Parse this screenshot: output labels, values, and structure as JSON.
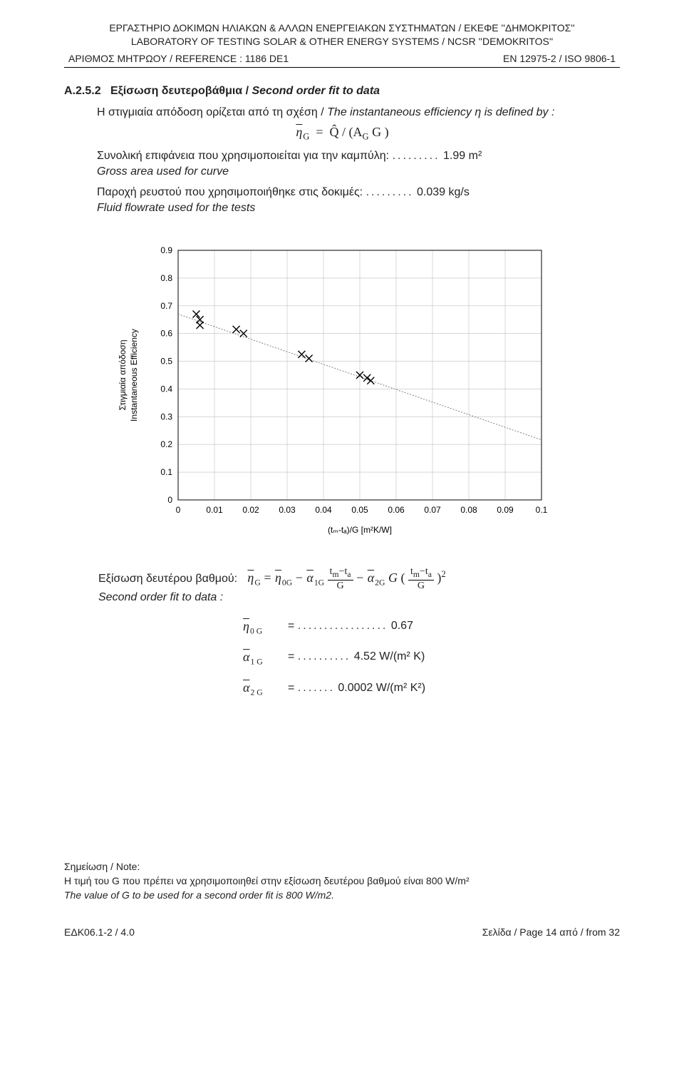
{
  "header": {
    "line1_el": "ΕΡΓΑΣΤΗΡΙΟ ΔΟΚΙΜΩΝ ΗΛΙΑΚΩΝ & ΑΛΛΩΝ ΕΝΕΡΓΕΙΑΚΩΝ ΣΥΣΤΗΜΑΤΩΝ / ΕΚΕΦΕ ''ΔΗΜΟΚΡΙΤΟΣ''",
    "line1_en": "LABORATORY OF TESTING SOLAR & OTHER ENERGY SYSTEMS / NCSR ''DEMOKRITOS''",
    "ref_left": "ΑΡΙΘΜΟΣ ΜΗΤΡΩΟΥ / REFERENCE : 1186 DE1",
    "ref_right": "EN 12975-2 / ISO 9806-1"
  },
  "section": {
    "number": "A.2.5.2",
    "title_el": "Εξίσωση δευτεροβάθμια /",
    "title_en": "Second order fit to data",
    "defn_el": "Η στιγμιαία απόδοση ορίζεται από τη σχέση /",
    "defn_en": "The instantaneous efficiency η is defined by :",
    "eq_main": "η̄_G = Q̂ / (A_G G)",
    "area_el": "Συνολική επιφάνεια που χρησιμοποιείται για την καμπύλη:",
    "area_val": "1.99 m²",
    "area_en": "Gross area used for curve",
    "flow_el": "Παροχή ρευστού που χρησιμοποιήθηκε στις δοκιμές:",
    "flow_val": "0.039 kg/s",
    "flow_en": "Fluid  flowrate  used for the tests"
  },
  "chart": {
    "type": "scatter_with_fit",
    "y_label": "Στιγμιαία απόδοση\nInstantaneous Efficiency",
    "x_label": "(tₘ-tₐ)/G   [m²K/W]",
    "xlim": [
      0,
      0.1
    ],
    "ylim": [
      0,
      0.9
    ],
    "x_ticks": [
      0,
      0.01,
      0.02,
      0.03,
      0.04,
      0.05,
      0.06,
      0.07,
      0.08,
      0.09,
      0.1
    ],
    "y_ticks": [
      0,
      0.1,
      0.2,
      0.3,
      0.4,
      0.5,
      0.6,
      0.7,
      0.8,
      0.9
    ],
    "grid_color": "#bfbfbf",
    "axis_color": "#000000",
    "background": "#ffffff",
    "marker_style": "x",
    "marker_color": "#000000",
    "marker_size": 10,
    "fit_line_color": "#808080",
    "fit_line_width": 1,
    "fit_line_dash": "2,2",
    "label_fontsize": 12,
    "tick_fontsize": 12,
    "points": [
      [
        0.005,
        0.67
      ],
      [
        0.006,
        0.65
      ],
      [
        0.006,
        0.63
      ],
      [
        0.016,
        0.615
      ],
      [
        0.018,
        0.6
      ],
      [
        0.034,
        0.525
      ],
      [
        0.036,
        0.51
      ],
      [
        0.05,
        0.45
      ],
      [
        0.052,
        0.44
      ],
      [
        0.053,
        0.43
      ]
    ],
    "fit_coeffs": {
      "eta0": 0.67,
      "a1": 4.52,
      "a2": 0.0002
    }
  },
  "second_order": {
    "label_el": "Εξίσωση δευτέρου βαθμού:",
    "label_en": "Second order fit to data :",
    "eta0_val": "0.67",
    "a1_val": "4.52 W/(m² K)",
    "a2_val": "0.0002 W/(m² K²)"
  },
  "note": {
    "head": "Σημείωση / Note:",
    "el": "Η  τιμή του G που πρέπει να χρησιμοποιηθεί στην εξίσωση δευτέρου  βαθμού είναι 800 W/m²",
    "en": "The value of G to be used for a second order fit is 800 W/m2."
  },
  "footer": {
    "left": "ΕΔΚ06.1-2 / 4.0",
    "right": "Σελίδα / Page 14 από / from 32"
  }
}
